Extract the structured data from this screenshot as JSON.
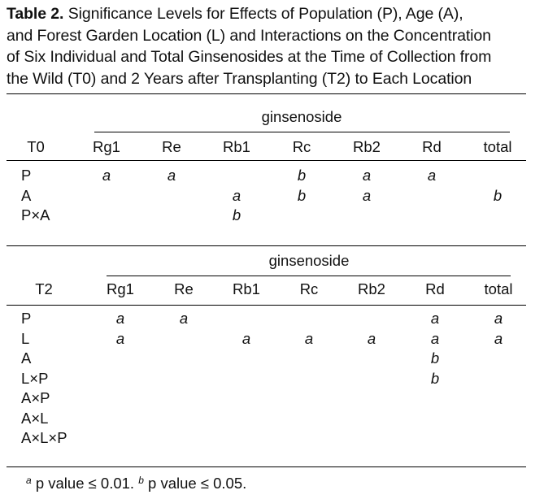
{
  "caption": {
    "label": "Table 2.",
    "line1": "Significance Levels for Effects of Population (P), Age (A),",
    "line2": "and Forest Garden Location (L) and Interactions on the Concentration",
    "line3": "of Six Individual and Total Ginsenosides at the Time of Collection from",
    "line4": "the Wild (T0) and 2 Years after Transplanting (T2) to Each Location"
  },
  "t0": {
    "group_header": "ginsenoside",
    "stub_header": "T0",
    "columns": [
      "Rg1",
      "Re",
      "Rb1",
      "Rc",
      "Rb2",
      "Rd",
      "total"
    ],
    "rows": [
      {
        "label": "P",
        "cells": [
          "a",
          "a",
          "",
          "b",
          "a",
          "a",
          ""
        ]
      },
      {
        "label": "A",
        "cells": [
          "",
          "",
          "a",
          "b",
          "a",
          "",
          "b"
        ]
      },
      {
        "label": "P×A",
        "cells": [
          "",
          "",
          "b",
          "",
          "",
          "",
          ""
        ]
      }
    ]
  },
  "t2": {
    "group_header": "ginsenoside",
    "stub_header": "T2",
    "columns": [
      "Rg1",
      "Re",
      "Rb1",
      "Rc",
      "Rb2",
      "Rd",
      "total"
    ],
    "rows": [
      {
        "label": "P",
        "cells": [
          "a",
          "a",
          "",
          "",
          "",
          "a",
          "a"
        ]
      },
      {
        "label": "L",
        "cells": [
          "a",
          "",
          "a",
          "a",
          "a",
          "a",
          "a"
        ]
      },
      {
        "label": "A",
        "cells": [
          "",
          "",
          "",
          "",
          "",
          "b",
          ""
        ]
      },
      {
        "label": "L×P",
        "cells": [
          "",
          "",
          "",
          "",
          "",
          "b",
          ""
        ]
      },
      {
        "label": "A×P",
        "cells": [
          "",
          "",
          "",
          "",
          "",
          "",
          ""
        ]
      },
      {
        "label": "A×L",
        "cells": [
          "",
          "",
          "",
          "",
          "",
          "",
          ""
        ]
      },
      {
        "label": "A×L×P",
        "cells": [
          "",
          "",
          "",
          "",
          "",
          "",
          ""
        ]
      }
    ]
  },
  "footnote": {
    "mark_a": "a",
    "text_a": " p value ≤ 0.01. ",
    "mark_b": "b",
    "text_b": " p value ≤ 0.05."
  }
}
